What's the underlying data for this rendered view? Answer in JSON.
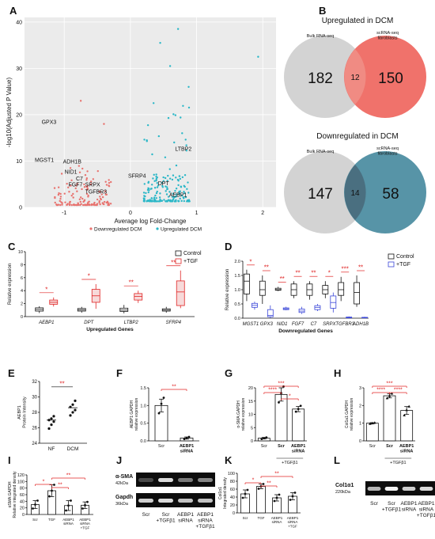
{
  "panel_letters": [
    "A",
    "B",
    "C",
    "D",
    "E",
    "F",
    "G",
    "H",
    "I",
    "J",
    "K",
    "L"
  ],
  "colors": {
    "down": "#e8726e",
    "up": "#2ab7c7",
    "salmon": "#ef6a63",
    "teal": "#4e8ea2",
    "grey": "#d3d3d3",
    "red": "#e02424",
    "blue": "#3a46d8",
    "plot_bg": "#ebebeb"
  },
  "chart_data": [
    {
      "id": "A",
      "type": "scatter",
      "xlabel": "Average log Fold-Change",
      "ylabel": "-log10(Adjusted P Value)",
      "xlim": [
        -1.6,
        2.2
      ],
      "ylim": [
        0,
        41
      ],
      "xticks": [
        -1,
        0,
        1,
        2
      ],
      "yticks": [
        0,
        10,
        20,
        30,
        40
      ],
      "legend": [
        "Downregulated DCM",
        "Upregulated DCM"
      ],
      "labels": [
        {
          "text": "GPX3",
          "x": -1.23,
          "y": 18
        },
        {
          "text": "MGST1",
          "x": -1.3,
          "y": 9.8
        },
        {
          "text": "ADH1B",
          "x": -0.88,
          "y": 9.5
        },
        {
          "text": "NID1",
          "x": -0.9,
          "y": 7.3
        },
        {
          "text": "C7",
          "x": -0.77,
          "y": 5.8
        },
        {
          "text": "FGF7",
          "x": -0.83,
          "y": 4.5
        },
        {
          "text": "SRPX",
          "x": -0.57,
          "y": 4.5
        },
        {
          "text": "TGFBR3",
          "x": -0.52,
          "y": 3.0
        },
        {
          "text": "LTBP2",
          "x": 0.8,
          "y": 12.2
        },
        {
          "text": "SFRP4",
          "x": 0.1,
          "y": 6.4
        },
        {
          "text": "DPT",
          "x": 0.5,
          "y": 4.8
        },
        {
          "text": "AEBP1",
          "x": 0.72,
          "y": 2.3
        }
      ]
    },
    {
      "id": "B1",
      "type": "venn",
      "title": "Upregulated in DCM",
      "sets": [
        "Bulk RNA-seq",
        "scRNA-seq\nfibroblasts"
      ],
      "values": [
        182,
        12,
        150
      ]
    },
    {
      "id": "B2",
      "type": "venn",
      "title": "Downregulated in DCM",
      "sets": [
        "Bulk RNA-seq",
        "scRNA-seq\nfibroblasts"
      ],
      "values": [
        147,
        14,
        58
      ]
    },
    {
      "id": "C",
      "type": "box",
      "xlabel": "Upregulated Genes",
      "ylabel": "Relative expression",
      "ylim": [
        0,
        10
      ],
      "yticks": [
        0,
        2,
        4,
        6,
        8,
        10
      ],
      "legend": [
        "Control",
        "+TGF"
      ],
      "categories": [
        "AEBP1",
        "DPT",
        "LTBP2",
        "SFRP4"
      ],
      "control": [
        [
          0.55,
          0.85,
          1.1,
          1.35,
          1.6
        ],
        [
          0.6,
          0.85,
          1.05,
          1.25,
          1.5
        ],
        [
          0.5,
          0.8,
          1.0,
          1.3,
          1.8
        ],
        [
          0.6,
          0.85,
          1.0,
          1.2,
          1.5
        ]
      ],
      "tgf": [
        [
          1.55,
          1.9,
          2.2,
          2.55,
          2.95
        ],
        [
          1.2,
          2.2,
          3.2,
          4.2,
          5.0
        ],
        [
          2.1,
          2.55,
          3.1,
          3.55,
          4.0
        ],
        [
          1.3,
          1.7,
          3.8,
          5.5,
          7.1
        ]
      ],
      "sig": [
        "*",
        "*",
        "**",
        "**"
      ]
    },
    {
      "id": "D",
      "type": "box",
      "xlabel": "Downregulated Genes",
      "ylabel": "Relative expression",
      "ylim": [
        0,
        2.0
      ],
      "yticks": [
        0.0,
        0.5,
        1.0,
        1.5,
        2.0
      ],
      "legend": [
        "Control",
        "+TGF"
      ],
      "categories": [
        "MGST1",
        "GPX3",
        "NID1",
        "FGF7",
        "C7",
        "SRPX",
        "TGFBR3",
        "ADH1B"
      ],
      "control": [
        [
          0.6,
          0.85,
          1.3,
          1.55,
          1.7
        ],
        [
          0.5,
          0.8,
          1.0,
          1.3,
          1.5
        ],
        [
          0.95,
          0.98,
          1.0,
          1.05,
          1.1
        ],
        [
          0.7,
          0.8,
          1.0,
          1.2,
          1.3
        ],
        [
          0.65,
          0.8,
          1.0,
          1.2,
          1.3
        ],
        [
          0.7,
          0.85,
          1.0,
          1.15,
          1.3
        ],
        [
          0.6,
          0.8,
          1.0,
          1.25,
          1.45
        ],
        [
          0.4,
          0.5,
          0.9,
          1.25,
          1.5
        ]
      ],
      "tgf": [
        [
          0.3,
          0.38,
          0.45,
          0.52,
          0.58
        ],
        [
          0.0,
          0.05,
          0.1,
          0.3,
          0.45
        ],
        [
          0.28,
          0.3,
          0.33,
          0.36,
          0.4
        ],
        [
          0.15,
          0.2,
          0.25,
          0.32,
          0.4
        ],
        [
          0.25,
          0.3,
          0.38,
          0.44,
          0.5
        ],
        [
          0.2,
          0.35,
          0.55,
          0.78,
          0.9
        ],
        [
          0.0,
          0.01,
          0.02,
          0.04,
          0.06
        ],
        [
          0.0,
          0.01,
          0.02,
          0.03,
          0.05
        ]
      ],
      "sig": [
        "*",
        "**",
        "**",
        "**",
        "**",
        "*",
        "***",
        "**"
      ]
    },
    {
      "id": "E",
      "type": "scatter",
      "ylabel": "AEBP1\nProtein Intensity",
      "ylim": [
        24,
        32
      ],
      "yticks": [
        24,
        26,
        28,
        30,
        32
      ],
      "categories": [
        "NF",
        "DCM"
      ],
      "groups": [
        [
          25.9,
          26.4,
          26.8,
          27.0,
          27.2,
          27.5
        ],
        [
          27.6,
          28.0,
          28.3,
          28.7,
          29.0,
          29.5
        ]
      ],
      "means": [
        27.0,
        28.6
      ],
      "sig": [
        {
          "from": 0,
          "to": 1,
          "label": "**"
        }
      ]
    },
    {
      "id": "F",
      "type": "bar",
      "ylabel": "AEBP1:GAPDH\nrelative expression",
      "ylim": [
        0,
        1.5
      ],
      "yticks": [
        0.0,
        0.5,
        1.0,
        1.5
      ],
      "categories": [
        "Scr",
        "AEBP1\nsiRNA"
      ],
      "values": [
        1.0,
        0.08
      ],
      "errors": [
        0.18,
        0.03
      ],
      "points": [
        [
          0.78,
          1.05,
          1.22
        ],
        [
          0.05,
          0.08,
          0.11
        ]
      ],
      "sig": [
        {
          "from": 0,
          "to": 1,
          "label": "**"
        }
      ]
    },
    {
      "id": "G",
      "type": "bar",
      "ylabel": "α-SMA:GAPDH\nrelative expression",
      "ylim": [
        0,
        20
      ],
      "yticks": [
        0,
        5,
        10,
        15,
        20
      ],
      "categories": [
        "Scr",
        "Scr",
        "AEBP1\nsiRNA"
      ],
      "group_label": "+TGFβ1",
      "values": [
        1.0,
        17.5,
        12.0
      ],
      "errors": [
        0.3,
        2.5,
        1.0
      ],
      "points": [
        [
          0.7,
          1.0,
          1.3
        ],
        [
          14.5,
          18.0,
          20.5
        ],
        [
          11.0,
          12.0,
          13.2
        ]
      ],
      "sig": [
        {
          "from": 0,
          "to": 2,
          "label": "***"
        },
        {
          "from": 0,
          "to": 1,
          "label": "****"
        },
        {
          "from": 1,
          "to": 2,
          "label": "*"
        }
      ]
    },
    {
      "id": "H",
      "type": "bar",
      "ylabel": "Col1a1:GAPDH\nrelative expression",
      "ylim": [
        0,
        3
      ],
      "yticks": [
        0,
        1,
        2,
        3
      ],
      "categories": [
        "Scr",
        "Scr",
        "AEBP1\nsiRNA"
      ],
      "group_label": "+TGFβ1",
      "values": [
        1.0,
        2.55,
        1.72
      ],
      "errors": [
        0.03,
        0.12,
        0.22
      ],
      "points": [
        [
          0.97,
          1.0,
          1.03
        ],
        [
          2.42,
          2.55,
          2.68
        ],
        [
          1.45,
          1.75,
          1.95
        ]
      ],
      "sig": [
        {
          "from": 0,
          "to": 2,
          "label": "***"
        },
        {
          "from": 0,
          "to": 1,
          "label": "****"
        },
        {
          "from": 1,
          "to": 2,
          "label": "****"
        }
      ]
    },
    {
      "id": "I",
      "type": "bar",
      "ylabel": "αSMA:GAPDH\nRelative integrated density",
      "ylim": [
        0,
        120
      ],
      "yticks": [
        0,
        20,
        40,
        60,
        80,
        100,
        120
      ],
      "categories": [
        "Scr",
        "TGF",
        "AEBP1\nsiRNA",
        "AEBP1\nsiRNA\n+TGF"
      ],
      "values": [
        30,
        72,
        27,
        28
      ],
      "errors": [
        12,
        18,
        15,
        10
      ],
      "points": [
        [
          18,
          30,
          42
        ],
        [
          55,
          72,
          90
        ],
        [
          12,
          27,
          42
        ],
        [
          18,
          28,
          38
        ]
      ],
      "sig": [
        {
          "from": 0,
          "to": 1,
          "label": "*"
        },
        {
          "from": 1,
          "to": 2,
          "label": "**"
        },
        {
          "from": 1,
          "to": 3,
          "label": "**"
        }
      ]
    },
    {
      "id": "K",
      "type": "bar",
      "ylabel": "Col1α1\nIntegrated density",
      "ylim": [
        0,
        100
      ],
      "yticks": [
        0,
        20,
        40,
        60,
        80,
        100
      ],
      "categories": [
        "Scr",
        "TGF",
        "AEBP1\nsiRNA",
        "AEBP1\nsiRNA\n+TGF"
      ],
      "values": [
        48,
        67,
        38,
        42
      ],
      "errors": [
        10,
        6,
        8,
        9
      ],
      "points": [
        [
          38,
          48,
          58
        ],
        [
          61,
          67,
          73
        ],
        [
          30,
          38,
          46
        ],
        [
          33,
          42,
          51
        ]
      ],
      "sig": [
        {
          "from": 0,
          "to": 1,
          "label": "*"
        },
        {
          "from": 1,
          "to": 2,
          "label": "**"
        },
        {
          "from": 1,
          "to": 3,
          "label": "**"
        }
      ]
    }
  ],
  "blot_j": {
    "rows": [
      {
        "name": "α-SMA",
        "kda": "42kDa"
      },
      {
        "name": "Gapdh",
        "kda": "36kDa"
      }
    ],
    "lanes": [
      "Scr",
      "Scr\n+TGFβ1",
      "AEBP1\nsiRNA",
      "AEBP1\nsiRNA\n+TGFβ1"
    ]
  },
  "blot_l": {
    "rows": [
      {
        "name": "Col1α1",
        "kda": "220kDa"
      }
    ],
    "lanes": [
      "Scr",
      "Scr\n+TGFβ1",
      "AEBP1\nsiRNA",
      "AEBP1\nsiRNA\n+TGFβ1"
    ]
  }
}
